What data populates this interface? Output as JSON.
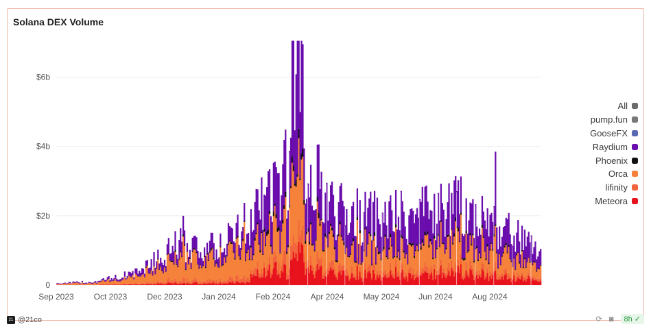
{
  "chart_data": {
    "type": "bar",
    "stacked": true,
    "title": "Solana DEX Volume",
    "xlabel": "",
    "ylabel": "",
    "ylim": [
      0,
      7000000000
    ],
    "y_ticks": [
      {
        "value": 0,
        "label": "0"
      },
      {
        "value": 2000000000,
        "label": "$2b"
      },
      {
        "value": 4000000000,
        "label": "$4b"
      },
      {
        "value": 6000000000,
        "label": "$6b"
      }
    ],
    "x_ticks": [
      "Sep 2023",
      "Oct 2023",
      "Dec 2023",
      "Jan 2024",
      "Feb 2024",
      "Apr 2024",
      "May 2024",
      "Jun 2024",
      "Aug 2024"
    ],
    "grid": true,
    "legend_position": "right",
    "series": [
      {
        "name": "All",
        "color": "#6b6b6b"
      },
      {
        "name": "pump.fun",
        "color": "#777777"
      },
      {
        "name": "GooseFX",
        "color": "#5b69b5"
      },
      {
        "name": "Raydium",
        "color": "#6a0dad"
      },
      {
        "name": "Phoenix",
        "color": "#111111"
      },
      {
        "name": "Orca",
        "color": "#f5813a"
      },
      {
        "name": "lifinity",
        "color": "#f2643c"
      },
      {
        "name": "Meteora",
        "color": "#e8121c"
      }
    ],
    "stack_order": [
      "Meteora",
      "lifinity",
      "Orca",
      "Phoenix",
      "Raydium"
    ],
    "daily_totals_billions": [
      {
        "month": "Sep 2023",
        "value": 0.05
      },
      {
        "month": "Oct 2023",
        "value": 0.1
      },
      {
        "month": "Nov 2023",
        "value": 0.35
      },
      {
        "month": "Dec 2023",
        "value": 1.1
      },
      {
        "month": "Jan 2024",
        "value": 1.0
      },
      {
        "month": "Feb 2024",
        "value": 2.0
      },
      {
        "month": "Mar 2024",
        "value": 3.5
      },
      {
        "month": "Apr 2024",
        "value": 2.0
      },
      {
        "month": "May 2024",
        "value": 1.8
      },
      {
        "month": "Jun 2024",
        "value": 1.9
      },
      {
        "month": "Jul 2024",
        "value": 2.2
      },
      {
        "month": "Aug 2024",
        "value": 1.6
      },
      {
        "month": "Sep 2024",
        "value": 0.9
      }
    ],
    "peak_total_billions": 7.05
  },
  "footer": {
    "author": "@21co",
    "refresh_badge": "8h"
  }
}
